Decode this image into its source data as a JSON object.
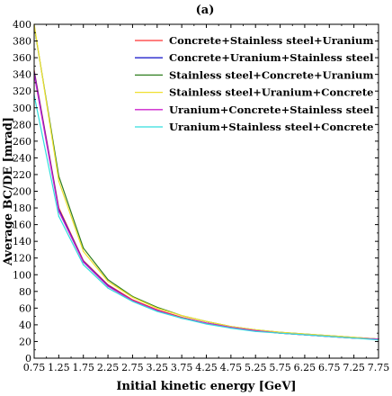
{
  "chart_data": {
    "type": "line",
    "title": "(a)",
    "xlabel": "Initial kinetic energy [GeV]",
    "ylabel": "Average BC/DE [mrad]",
    "xlim": [
      0.75,
      7.75
    ],
    "ylim": [
      0,
      400
    ],
    "x_ticks": [
      "0.75",
      "1.25",
      "1.75",
      "2.25",
      "2.75",
      "3.25",
      "3.75",
      "4.25",
      "4.75",
      "5.25",
      "5.75",
      "6.25",
      "6.75",
      "7.25",
      "7.75"
    ],
    "y_ticks": [
      "0",
      "20",
      "40",
      "60",
      "80",
      "100",
      "120",
      "140",
      "160",
      "180",
      "200",
      "220",
      "240",
      "260",
      "280",
      "300",
      "320",
      "340",
      "360",
      "380",
      "400"
    ],
    "legend_position": "top-right",
    "x": [
      0.75,
      1.25,
      1.75,
      2.25,
      2.75,
      3.25,
      3.75,
      4.25,
      4.75,
      5.25,
      5.75,
      6.25,
      6.75,
      7.25,
      7.75
    ],
    "series": [
      {
        "name": "Concrete+Stainless steel+Uranium",
        "color": "#ff3333",
        "values": [
          345,
          180,
          117,
          88,
          70,
          58,
          49,
          42,
          37,
          33,
          30,
          28,
          26,
          24,
          23
        ]
      },
      {
        "name": "Concrete+Uranium+Stainless steel",
        "color": "#2222cc",
        "values": [
          343,
          178,
          116,
          87,
          69,
          57,
          48,
          42,
          37,
          33,
          30,
          28,
          26,
          24,
          23
        ]
      },
      {
        "name": "Stainless steel+Concrete+Uranium",
        "color": "#2e7d1e",
        "values": [
          398,
          218,
          132,
          94,
          74,
          61,
          51,
          44,
          38,
          34,
          31,
          29,
          27,
          25,
          23
        ]
      },
      {
        "name": "Stainless steel+Uranium+Concrete",
        "color": "#f0e030",
        "values": [
          400,
          212,
          128,
          92,
          73,
          60,
          51,
          44,
          38,
          34,
          31,
          29,
          27,
          25,
          23
        ]
      },
      {
        "name": "Uranium+Concrete+Stainless steel",
        "color": "#cc22cc",
        "values": [
          340,
          176,
          115,
          86,
          69,
          57,
          48,
          42,
          37,
          33,
          30,
          28,
          26,
          24,
          23
        ]
      },
      {
        "name": "Uranium+Stainless steel+Concrete",
        "color": "#33dddd",
        "values": [
          315,
          170,
          112,
          84,
          68,
          56,
          48,
          41,
          36,
          32,
          30,
          28,
          26,
          24,
          22
        ]
      }
    ]
  }
}
